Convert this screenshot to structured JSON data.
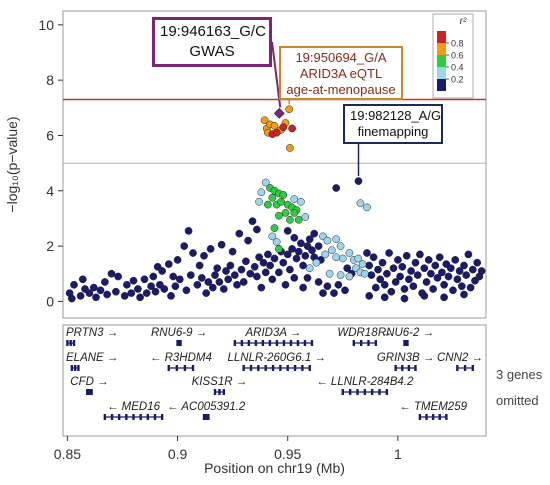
{
  "chart_data": {
    "type": "scatter",
    "ylabel": "−log₁₀(p−value)",
    "xlabel": "Position on chr19 (Mb)",
    "xlim": [
      0.848,
      1.04
    ],
    "ylim": [
      -0.6,
      10.5
    ],
    "y_ticks": [
      "0",
      "2",
      "4",
      "6",
      "8",
      "10"
    ],
    "x_ticks": [
      "0.85",
      "0.9",
      "0.95",
      "1"
    ],
    "significance_line": 7.3,
    "legend": {
      "title": "r²",
      "labels": [
        "0.8",
        "0.6",
        "0.4",
        "0.2"
      ],
      "colors": [
        "#cc2222",
        "#f39c12",
        "#2ecc40",
        "#9fd4ee",
        "#1a1a6e"
      ]
    },
    "annotations": [
      {
        "name": "gwas",
        "line1": "19:946163_G/C",
        "line2": "GWAS",
        "line3": "",
        "color": "#7b2675",
        "x": 0.946163
      },
      {
        "name": "eqtl",
        "line1": "19:950694_G/A",
        "line2": "ARID3A eQTL",
        "line3": "age-at-menopause",
        "color": "#c9892a",
        "x": 0.950694
      },
      {
        "name": "finemapping",
        "line1": "19:982128_A/G",
        "line2": "finemapping",
        "line3": "",
        "color": "#1a2a5e",
        "x": 0.982128
      }
    ],
    "series": [
      {
        "name": "0.8-1.0",
        "color": "#cc2222",
        "points": [
          [
            0.946163,
            6.8
          ],
          [
            0.948,
            6.3
          ],
          [
            0.943,
            6.05
          ],
          [
            0.952,
            6.25
          ],
          [
            0.945,
            6.1
          ]
        ]
      },
      {
        "name": "0.6-0.8",
        "color": "#f39c12",
        "points": [
          [
            0.950694,
            6.95
          ],
          [
            0.9395,
            6.55
          ],
          [
            0.9405,
            6.25
          ],
          [
            0.942,
            6.4
          ],
          [
            0.944,
            6.35
          ],
          [
            0.941,
            6.1
          ],
          [
            0.947,
            6.2
          ],
          [
            0.951,
            5.55
          ],
          [
            0.949,
            6.45
          ]
        ]
      },
      {
        "name": "0.4-0.6",
        "color": "#2ecc40",
        "points": [
          [
            0.942,
            4.1
          ],
          [
            0.944,
            4.0
          ],
          [
            0.946,
            3.9
          ],
          [
            0.948,
            3.85
          ],
          [
            0.943,
            3.75
          ],
          [
            0.945,
            3.5
          ],
          [
            0.941,
            3.5
          ],
          [
            0.947,
            3.6
          ],
          [
            0.95,
            3.5
          ],
          [
            0.952,
            3.4
          ],
          [
            0.954,
            3.3
          ],
          [
            0.949,
            3.2
          ],
          [
            0.953,
            3.2
          ],
          [
            0.946,
            3.1
          ],
          [
            0.951,
            2.95
          ],
          [
            0.955,
            2.95
          ],
          [
            0.944,
            2.65
          ],
          [
            0.946,
            1.9
          ]
        ]
      },
      {
        "name": "0.2-0.4",
        "color": "#9fd4ee",
        "points": [
          [
            0.94,
            4.3
          ],
          [
            0.938,
            3.95
          ],
          [
            0.937,
            3.6
          ],
          [
            0.956,
            3.6
          ],
          [
            0.953,
            3.7
          ],
          [
            0.958,
            3.05
          ],
          [
            0.943,
            2.35
          ],
          [
            0.945,
            2.15
          ],
          [
            0.966,
            2.35
          ],
          [
            0.968,
            2.2
          ],
          [
            0.972,
            2.25
          ],
          [
            0.974,
            2.0
          ],
          [
            0.97,
            1.85
          ],
          [
            0.967,
            1.7
          ],
          [
            0.972,
            1.6
          ],
          [
            0.975,
            1.55
          ],
          [
            0.978,
            1.75
          ],
          [
            0.98,
            1.5
          ],
          [
            0.982,
            1.55
          ],
          [
            0.984,
            1.35
          ],
          [
            0.981,
            1.2
          ],
          [
            0.983,
            1.05
          ],
          [
            0.985,
            1.0
          ],
          [
            0.983,
            3.55
          ],
          [
            0.986,
            3.4
          ],
          [
            0.978,
            0.9
          ],
          [
            0.963,
            1.4
          ],
          [
            0.974,
            0.95
          ],
          [
            0.96,
            1.2
          ],
          [
            0.969,
            1.0
          ]
        ]
      },
      {
        "name": "0.0-0.2",
        "color": "#1a1a6e",
        "points": [
          [
            0.982128,
            4.35
          ],
          [
            0.972,
            4.1
          ],
          [
            0.934,
            2.9
          ],
          [
            0.936,
            2.6
          ],
          [
            0.932,
            2.2
          ],
          [
            0.928,
            2.45
          ],
          [
            0.92,
            2.05
          ],
          [
            0.925,
            1.8
          ],
          [
            0.915,
            1.9
          ],
          [
            0.912,
            1.65
          ],
          [
            0.905,
            2.55
          ],
          [
            0.903,
            2.0
          ],
          [
            0.907,
            1.75
          ],
          [
            0.918,
            1.2
          ],
          [
            0.91,
            1.3
          ],
          [
            0.9,
            1.5
          ],
          [
            0.896,
            1.35
          ],
          [
            0.893,
            1.1
          ],
          [
            0.898,
            0.9
          ],
          [
            0.889,
            0.9
          ],
          [
            0.891,
            1.25
          ],
          [
            0.885,
            0.8
          ],
          [
            0.88,
            0.75
          ],
          [
            0.882,
            0.45
          ],
          [
            0.877,
            0.6
          ],
          [
            0.873,
            0.9
          ],
          [
            0.87,
            1.0
          ],
          [
            0.867,
            0.7
          ],
          [
            0.865,
            0.4
          ],
          [
            0.862,
            0.5
          ],
          [
            0.86,
            0.3
          ],
          [
            0.858,
            0.45
          ],
          [
            0.856,
            0.2
          ],
          [
            0.853,
            0.6
          ],
          [
            0.851,
            0.3
          ],
          [
            0.852,
            0.1
          ],
          [
            0.857,
            0.8
          ],
          [
            0.863,
            0.15
          ],
          [
            0.868,
            0.25
          ],
          [
            0.872,
            0.35
          ],
          [
            0.876,
            0.2
          ],
          [
            0.879,
            0.3
          ],
          [
            0.883,
            0.15
          ],
          [
            0.886,
            0.3
          ],
          [
            0.888,
            0.55
          ],
          [
            0.89,
            0.35
          ],
          [
            0.892,
            0.6
          ],
          [
            0.894,
            0.45
          ],
          [
            0.897,
            0.2
          ],
          [
            0.899,
            0.55
          ],
          [
            0.901,
            0.8
          ],
          [
            0.904,
            0.4
          ],
          [
            0.906,
            0.95
          ],
          [
            0.909,
            0.6
          ],
          [
            0.911,
            0.85
          ],
          [
            0.913,
            0.3
          ],
          [
            0.914,
            0.7
          ],
          [
            0.916,
            0.5
          ],
          [
            0.917,
            0.95
          ],
          [
            0.919,
            0.7
          ],
          [
            0.921,
            0.45
          ],
          [
            0.922,
            1.1
          ],
          [
            0.923,
            0.8
          ],
          [
            0.924,
            1.3
          ],
          [
            0.926,
            0.95
          ],
          [
            0.927,
            0.6
          ],
          [
            0.929,
            1.15
          ],
          [
            0.93,
            0.7
          ],
          [
            0.931,
            1.45
          ],
          [
            0.933,
            1.0
          ],
          [
            0.935,
            1.25
          ],
          [
            0.937,
            1.6
          ],
          [
            0.939,
            1.4
          ],
          [
            0.94,
            1.05
          ],
          [
            0.941,
            1.7
          ],
          [
            0.942,
            1.3
          ],
          [
            0.944,
            1.55
          ],
          [
            0.947,
            1.8
          ],
          [
            0.948,
            1.4
          ],
          [
            0.95,
            1.7
          ],
          [
            0.952,
            1.9
          ],
          [
            0.954,
            1.55
          ],
          [
            0.955,
            1.8
          ],
          [
            0.957,
            1.3
          ],
          [
            0.958,
            1.65
          ],
          [
            0.959,
            2.0
          ],
          [
            0.961,
            1.85
          ],
          [
            0.962,
            1.6
          ],
          [
            0.964,
            2.0
          ],
          [
            0.965,
            1.5
          ],
          [
            0.95,
            2.55
          ],
          [
            0.953,
            2.3
          ],
          [
            0.956,
            2.1
          ],
          [
            0.96,
            2.25
          ],
          [
            0.962,
            2.45
          ],
          [
            0.938,
            0.5
          ],
          [
            0.936,
            0.9
          ],
          [
            0.943,
            0.8
          ],
          [
            0.946,
            1.05
          ],
          [
            0.949,
            0.6
          ],
          [
            0.951,
            1.15
          ],
          [
            0.953,
            0.85
          ],
          [
            0.957,
            0.5
          ],
          [
            0.959,
            0.85
          ],
          [
            0.964,
            0.7
          ],
          [
            0.966,
            0.3
          ],
          [
            0.968,
            0.55
          ],
          [
            0.971,
            0.3
          ],
          [
            0.973,
            0.6
          ],
          [
            0.976,
            0.4
          ],
          [
            0.977,
            1.2
          ],
          [
            0.979,
            1.0
          ],
          [
            0.986,
            1.75
          ],
          [
            0.987,
            1.3
          ],
          [
            0.988,
            0.95
          ],
          [
            0.989,
            1.6
          ],
          [
            0.99,
            0.5
          ],
          [
            0.991,
            1.15
          ],
          [
            0.992,
            0.8
          ],
          [
            0.993,
            1.4
          ],
          [
            0.994,
            0.6
          ],
          [
            0.995,
            1.0
          ],
          [
            0.996,
            1.75
          ],
          [
            0.997,
            0.35
          ],
          [
            0.998,
            1.2
          ],
          [
            0.999,
            0.7
          ],
          [
            1.0,
            1.5
          ],
          [
            1.001,
            0.9
          ],
          [
            1.002,
            1.25
          ],
          [
            1.003,
            0.45
          ],
          [
            1.004,
            1.65
          ],
          [
            1.005,
            0.8
          ],
          [
            1.006,
            1.1
          ],
          [
            1.007,
            0.55
          ],
          [
            1.008,
            1.4
          ],
          [
            1.009,
            0.95
          ],
          [
            1.01,
            1.7
          ],
          [
            1.011,
            0.3
          ],
          [
            1.012,
            1.2
          ],
          [
            1.013,
            0.7
          ],
          [
            1.014,
            1.5
          ],
          [
            1.015,
            1.0
          ],
          [
            1.016,
            0.45
          ],
          [
            1.017,
            1.3
          ],
          [
            1.018,
            0.85
          ],
          [
            1.019,
            1.6
          ],
          [
            1.02,
            1.05
          ],
          [
            1.021,
            0.6
          ],
          [
            1.022,
            1.35
          ],
          [
            1.023,
            0.9
          ],
          [
            1.024,
            1.2
          ],
          [
            1.025,
            0.4
          ],
          [
            1.026,
            1.5
          ],
          [
            1.027,
            0.8
          ],
          [
            1.028,
            1.1
          ],
          [
            1.029,
            0.55
          ],
          [
            1.03,
            1.3
          ],
          [
            1.031,
            0.95
          ],
          [
            1.032,
            1.7
          ],
          [
            1.033,
            0.5
          ],
          [
            1.034,
            1.15
          ],
          [
            1.035,
            0.75
          ],
          [
            1.036,
            1.4
          ],
          [
            1.037,
            0.9
          ],
          [
            1.038,
            1.1
          ],
          [
            0.987,
            0.2
          ],
          [
            0.994,
            0.15
          ],
          [
            1.003,
            0.1
          ],
          [
            1.012,
            0.2
          ],
          [
            1.021,
            0.15
          ],
          [
            1.03,
            0.25
          ]
        ]
      }
    ],
    "genes": [
      {
        "name": "PRTN3",
        "strand": "+",
        "start": 0.85,
        "end": 0.853,
        "row": 0
      },
      {
        "name": "RNU6-9",
        "strand": "+",
        "start": 0.9,
        "end": 0.9005,
        "row": 0
      },
      {
        "name": "ARID3A",
        "strand": "+",
        "start": 0.926,
        "end": 0.961,
        "row": 0
      },
      {
        "name": "WDR18",
        "strand": "+",
        "start": 0.98,
        "end": 0.99,
        "row": 0
      },
      {
        "name": "RNU6-2",
        "strand": "+",
        "start": 1.003,
        "end": 1.0035,
        "row": 0
      },
      {
        "name": "ELANE",
        "strand": "+",
        "start": 0.852,
        "end": 0.855,
        "row": 1
      },
      {
        "name": "R3HDM4",
        "strand": "-",
        "start": 0.896,
        "end": 0.907,
        "row": 1
      },
      {
        "name": "LLNLR-260G6.1",
        "strand": "+",
        "start": 0.93,
        "end": 0.96,
        "row": 1
      },
      {
        "name": "GRIN3B",
        "strand": "+",
        "start": 0.999,
        "end": 1.008,
        "row": 1
      },
      {
        "name": "CNN2",
        "strand": "+",
        "start": 1.027,
        "end": 1.034,
        "row": 1
      },
      {
        "name": "CFD",
        "strand": "+",
        "start": 0.859,
        "end": 0.861,
        "row": 2
      },
      {
        "name": "KISS1R",
        "strand": "+",
        "start": 0.917,
        "end": 0.921,
        "row": 2
      },
      {
        "name": "LLNLR-284B4.2",
        "strand": "-",
        "start": 0.975,
        "end": 0.995,
        "row": 2
      },
      {
        "name": "MED16",
        "strand": "-",
        "start": 0.867,
        "end": 0.893,
        "row": 3
      },
      {
        "name": "AC005391.2",
        "strand": "-",
        "start": 0.912,
        "end": 0.914,
        "row": 3
      },
      {
        "name": "TMEM259",
        "strand": "-",
        "start": 1.01,
        "end": 1.022,
        "row": 3
      }
    ]
  },
  "side_note": {
    "line1": "3 genes",
    "line2": "omitted"
  }
}
